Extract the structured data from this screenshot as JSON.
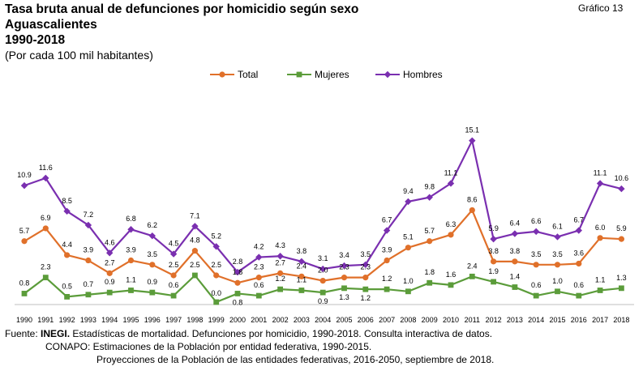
{
  "header": {
    "title_lines": [
      "Tasa bruta anual de defunciones por homicidio según sexo",
      "Aguascalientes",
      "1990-2018"
    ],
    "subtitle": "(Por cada 100 mil habitantes)",
    "badge": "Gráfico 13"
  },
  "chart_data": {
    "type": "line",
    "title": "Tasa bruta anual de defunciones por homicidio según sexo",
    "subtitle": "(Por cada 100 mil habitantes)",
    "xlabel": "",
    "ylabel": "",
    "grid": false,
    "legend_position": "top-center",
    "ylim": [
      0,
      16
    ],
    "categories": [
      "1990",
      "1991",
      "1992",
      "1993",
      "1994",
      "1995",
      "1996",
      "1997",
      "1998",
      "1999",
      "2000",
      "2001",
      "2002",
      "2003",
      "2004",
      "2005",
      "2006",
      "2007",
      "2008",
      "2009",
      "2010",
      "2011",
      "2012",
      "2013",
      "2014",
      "2015",
      "2016",
      "2017",
      "2018"
    ],
    "series": [
      {
        "name": "Total",
        "color": "#E0702A",
        "marker": "circle",
        "values": [
          5.7,
          6.9,
          4.4,
          3.9,
          2.7,
          3.9,
          3.5,
          2.5,
          4.8,
          2.5,
          1.8,
          2.3,
          2.7,
          2.4,
          2.0,
          2.3,
          2.3,
          3.9,
          5.1,
          5.7,
          6.3,
          8.6,
          3.8,
          3.8,
          3.5,
          3.5,
          3.6,
          6.0,
          5.9
        ],
        "labels": [
          "5.7",
          "6.9",
          "4.4",
          "3.9",
          "2.7",
          "3.9",
          "3.5",
          "2.5",
          "4.8",
          "2.5",
          "1.8",
          "2.3",
          "2.7",
          "2.4",
          "2.0",
          "2.3",
          "2.3",
          "3.9",
          "5.1",
          "5.7",
          "6.3",
          "8.6",
          "3.8",
          "3.8",
          "3.5",
          "3.5",
          "3.6",
          "6.0",
          "5.9"
        ]
      },
      {
        "name": "Mujeres",
        "color": "#5B9C3A",
        "marker": "square",
        "values": [
          0.8,
          2.3,
          0.5,
          0.7,
          0.9,
          1.1,
          0.9,
          0.6,
          2.5,
          0.0,
          0.8,
          0.6,
          1.2,
          1.1,
          0.9,
          1.3,
          1.2,
          1.2,
          1.0,
          1.8,
          1.6,
          2.4,
          1.9,
          1.4,
          0.6,
          1.0,
          0.6,
          1.1,
          1.3
        ],
        "labels": [
          "0.8",
          "2.3",
          "0.5",
          "0.7",
          "0.9",
          "1.1",
          "0.9",
          "0.6",
          "2.5",
          "0.0",
          "0.8",
          "0.6",
          "1.2",
          "1.1",
          "0.9",
          "1.3",
          "1.2",
          "1.2",
          "1.0",
          "1.8",
          "1.6",
          "2.4",
          "1.9",
          "1.4",
          "0.6",
          "1.0",
          "0.6",
          "1.1",
          "1.3"
        ]
      },
      {
        "name": "Hombres",
        "color": "#7A2FB0",
        "marker": "diamond",
        "values": [
          10.9,
          11.6,
          8.5,
          7.2,
          4.6,
          6.8,
          6.2,
          4.5,
          7.1,
          5.2,
          2.8,
          4.2,
          4.3,
          3.8,
          3.1,
          3.4,
          3.5,
          6.7,
          9.4,
          9.8,
          11.1,
          15.1,
          5.9,
          6.4,
          6.6,
          6.1,
          6.7,
          11.1,
          10.6
        ],
        "labels": [
          "10.9",
          "11.6",
          "8.5",
          "7.2",
          "4.6",
          "6.8",
          "6.2",
          "4.5",
          "7.1",
          "5.2",
          "2.8",
          "4.2",
          "4.3",
          "3.8",
          "3.1",
          "3.4",
          "3.5",
          "6.7",
          "9.4",
          "9.8",
          "11.1",
          "15.1",
          "5.9",
          "6.4",
          "6.6",
          "6.1",
          "6.7",
          "11.1",
          "10.6"
        ]
      }
    ]
  },
  "source": {
    "label": "Fuente:",
    "org": "INEGI.",
    "line1": "Estadísticas de mortalidad. Defunciones por homicidio, 1990-2018. Consulta interactiva de datos.",
    "line2": "CONAPO: Estimaciones de la Población por entidad federativa, 1990-2015.",
    "line3": "Proyecciones de la Población de las entidades federativas, 2016-2050, septiembre de 2018."
  }
}
